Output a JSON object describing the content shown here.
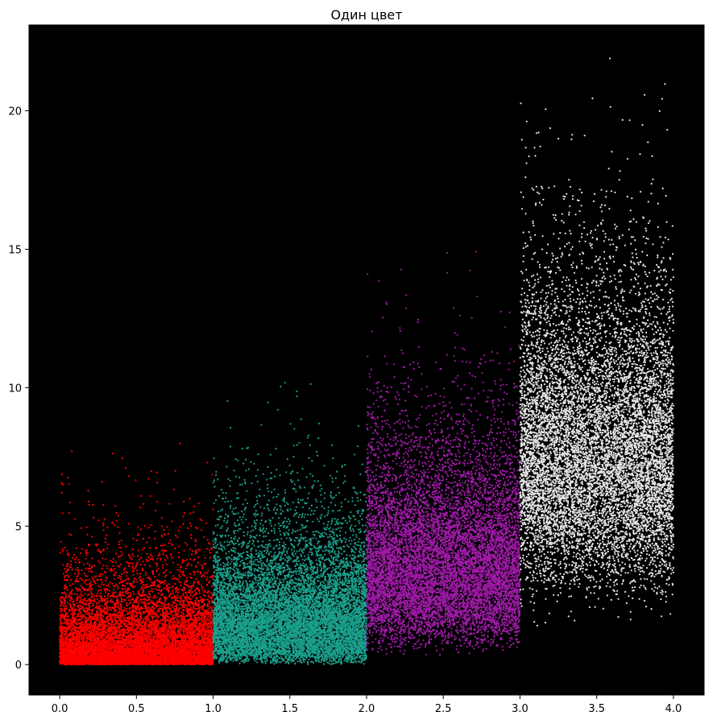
{
  "chart_data": {
    "type": "scatter",
    "title": "Один цвет",
    "xlabel": "",
    "ylabel": "",
    "xlim": [
      -0.2,
      4.2
    ],
    "ylim": [
      -1.1,
      23.1
    ],
    "x_ticks": [
      0.0,
      0.5,
      1.0,
      1.5,
      2.0,
      2.5,
      3.0,
      3.5,
      4.0
    ],
    "x_tick_labels": [
      "0.0",
      "0.5",
      "1.0",
      "1.5",
      "2.0",
      "2.5",
      "3.0",
      "3.5",
      "4.0"
    ],
    "y_ticks": [
      0,
      5,
      10,
      15,
      20
    ],
    "y_tick_labels": [
      "0",
      "5",
      "10",
      "15",
      "20"
    ],
    "grid": false,
    "legend": "none",
    "background_color": "#000000",
    "series": [
      {
        "x_range": [
          0.0,
          1.0
        ],
        "distribution": "gamma",
        "shape": 1,
        "scale": 1,
        "count": 10000,
        "y_range_observed": [
          0.0,
          8.3
        ],
        "color": "#ff0000"
      },
      {
        "x_range": [
          1.0,
          2.0
        ],
        "distribution": "gamma",
        "shape": 2,
        "scale": 1,
        "count": 10000,
        "y_range_observed": [
          0.0,
          10.4
        ],
        "color": "#1aa08c"
      },
      {
        "x_range": [
          2.0,
          3.0
        ],
        "distribution": "gamma",
        "shape": 4,
        "scale": 1,
        "count": 10000,
        "y_range_observed": [
          0.3,
          16.3
        ],
        "color": "#a01aa8"
      },
      {
        "x_range": [
          3.0,
          4.0
        ],
        "distribution": "gamma",
        "shape": 8,
        "scale": 1,
        "count": 10000,
        "y_range_observed": [
          1.4,
          22.0
        ],
        "color": "#e6e6e6"
      }
    ]
  }
}
